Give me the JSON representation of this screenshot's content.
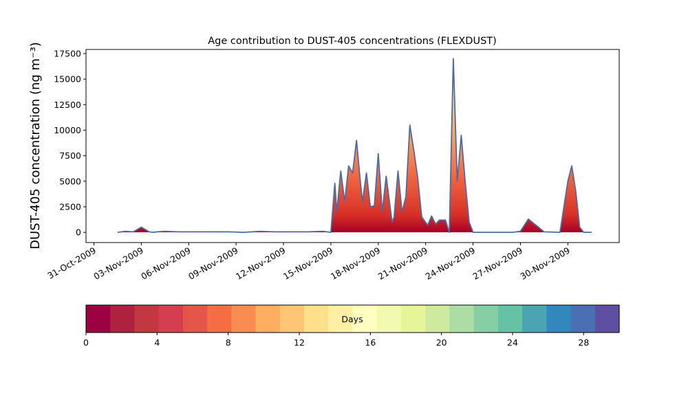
{
  "chart_data": {
    "type": "area",
    "title": "Age contribution to DUST-405 concentrations (FLEXDUST)",
    "ylabel": "DUST-405 concentration (ng m⁻³)",
    "xlabel": "",
    "grid": false,
    "ylim": [
      -1000,
      17900
    ],
    "xlim": [
      "2009-10-30T12:00",
      "2009-12-03T06:00"
    ],
    "yticks": [
      0,
      2500,
      5000,
      7500,
      10000,
      12500,
      15000,
      17500
    ],
    "yticklabels": [
      "0",
      "2500",
      "5000",
      "7500",
      "10000",
      "12500",
      "15000",
      "17500"
    ],
    "xticks": [
      "2009-10-31",
      "2009-11-03",
      "2009-11-06",
      "2009-11-09",
      "2009-11-12",
      "2009-11-15",
      "2009-11-18",
      "2009-11-21",
      "2009-11-24",
      "2009-11-27",
      "2009-11-30"
    ],
    "xticklabels": [
      "31-Oct-2009",
      "03-Nov-2009",
      "06-Nov-2009",
      "09-Nov-2009",
      "12-Nov-2009",
      "15-Nov-2009",
      "18-Nov-2009",
      "21-Nov-2009",
      "24-Nov-2009",
      "27-Nov-2009",
      "30-Nov-2009"
    ],
    "total_concentration": {
      "x": [
        "2009-11-01T12:00",
        "2009-11-02T00:00",
        "2009-11-02T12:00",
        "2009-11-03T00:00",
        "2009-11-03T12:00",
        "2009-11-03T18:00",
        "2009-11-04T00:00",
        "2009-11-04T12:00",
        "2009-11-05T12:00",
        "2009-11-06T12:00",
        "2009-11-07T12:00",
        "2009-11-08T12:00",
        "2009-11-09T12:00",
        "2009-11-10T12:00",
        "2009-11-11T12:00",
        "2009-11-12T12:00",
        "2009-11-13T12:00",
        "2009-11-14T12:00",
        "2009-11-15T00:00",
        "2009-11-15T06:00",
        "2009-11-15T09:00",
        "2009-11-15T15:00",
        "2009-11-15T21:00",
        "2009-11-16T03:00",
        "2009-11-16T09:00",
        "2009-11-16T15:00",
        "2009-11-16T21:00",
        "2009-11-17T00:00",
        "2009-11-17T06:00",
        "2009-11-17T12:00",
        "2009-11-17T18:00",
        "2009-11-18T00:00",
        "2009-11-18T06:00",
        "2009-11-18T12:00",
        "2009-11-18T21:00",
        "2009-11-19T00:00",
        "2009-11-19T06:00",
        "2009-11-19T12:00",
        "2009-11-19T18:00",
        "2009-11-20T00:00",
        "2009-11-20T06:00",
        "2009-11-20T12:00",
        "2009-11-20T18:00",
        "2009-11-21T03:00",
        "2009-11-21T09:00",
        "2009-11-21T15:00",
        "2009-11-21T21:00",
        "2009-11-22T06:00",
        "2009-11-22T12:00",
        "2009-11-22T18:00",
        "2009-11-23T00:00",
        "2009-11-23T06:00",
        "2009-11-23T12:00",
        "2009-11-23T18:00",
        "2009-11-24T00:00",
        "2009-11-24T12:00",
        "2009-11-25T12:00",
        "2009-11-26T00:00",
        "2009-11-26T12:00",
        "2009-11-27T00:00",
        "2009-11-27T12:00",
        "2009-11-28T12:00",
        "2009-11-29T12:00",
        "2009-11-30T00:00",
        "2009-11-30T06:00",
        "2009-11-30T12:00",
        "2009-11-30T18:00",
        "2009-12-01T00:00",
        "2009-12-01T12:00"
      ],
      "y": [
        0,
        100,
        50,
        500,
        50,
        0,
        50,
        100,
        50,
        50,
        50,
        50,
        0,
        100,
        50,
        50,
        50,
        100,
        0,
        4800,
        2000,
        6000,
        3000,
        6500,
        5800,
        9000,
        4800,
        3000,
        5800,
        2500,
        2600,
        7700,
        2000,
        5500,
        1000,
        1500,
        6000,
        2000,
        3500,
        10500,
        8000,
        5300,
        1500,
        700,
        1600,
        800,
        1200,
        1200,
        0,
        17000,
        5000,
        9500,
        5000,
        1000,
        0,
        0,
        0,
        0,
        0,
        100,
        1300,
        50,
        0,
        5000,
        6500,
        4000,
        500,
        0,
        0
      ]
    },
    "colorbar": {
      "label": "Days",
      "min": 0,
      "max": 30,
      "ticks": [
        0,
        4,
        8,
        12,
        16,
        20,
        24,
        28
      ],
      "ticklabels": [
        "0",
        "4",
        "8",
        "12",
        "16",
        "20",
        "24",
        "28"
      ],
      "colormap": "Spectral",
      "colors": [
        "#9e0142",
        "#b0213f",
        "#c3373f",
        "#d53e4f",
        "#e55648",
        "#f46d43",
        "#f88d52",
        "#fdae61",
        "#fec574",
        "#fee08b",
        "#feefa3",
        "#ffffbf",
        "#f3f9b0",
        "#e6f598",
        "#cdea9e",
        "#abdda4",
        "#86cfa5",
        "#66c2a5",
        "#4aa4b2",
        "#3288bd",
        "#4a6fb2",
        "#5e4fa2"
      ]
    },
    "colors": {
      "total_line": "#4a6baa"
    }
  }
}
